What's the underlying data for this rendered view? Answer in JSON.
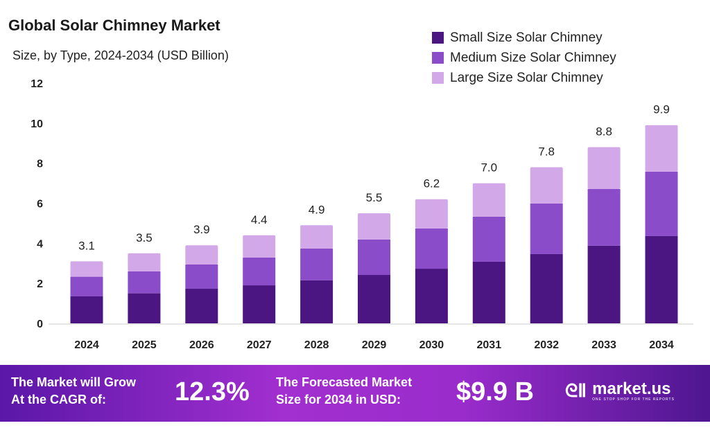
{
  "chart_data": {
    "type": "bar",
    "stacked": true,
    "title": "Global Solar Chimney Market",
    "subtitle": "Size, by Type, 2024-2034 (USD Billion)",
    "xlabel": "",
    "ylabel": "",
    "ylim": [
      0,
      12
    ],
    "yticks": [
      0,
      2,
      4,
      6,
      8,
      10,
      12
    ],
    "grid": false,
    "legend_position": "top-right",
    "categories": [
      "2024",
      "2025",
      "2026",
      "2027",
      "2028",
      "2029",
      "2030",
      "2031",
      "2032",
      "2033",
      "2034"
    ],
    "series": [
      {
        "name": "Small Size Solar Chimney",
        "color": "#4b1682",
        "values": [
          1.35,
          1.5,
          1.73,
          1.9,
          2.15,
          2.42,
          2.73,
          3.08,
          3.46,
          3.88,
          4.36
        ]
      },
      {
        "name": "Medium Size Solar Chimney",
        "color": "#8a4cc9",
        "values": [
          0.98,
          1.1,
          1.21,
          1.39,
          1.59,
          1.77,
          2.01,
          2.25,
          2.53,
          2.83,
          3.22
        ]
      },
      {
        "name": "Large Size Solar Chimney",
        "color": "#d3a8e8",
        "values": [
          0.77,
          0.9,
          0.96,
          1.11,
          1.16,
          1.31,
          1.46,
          1.67,
          1.81,
          2.09,
          2.32
        ]
      }
    ],
    "totals": [
      "3.1",
      "3.5",
      "3.9",
      "4.4",
      "4.9",
      "5.5",
      "6.2",
      "7.0",
      "7.8",
      "8.8",
      "9.9"
    ]
  },
  "footer": {
    "cagr_text_1": "The Market will Grow",
    "cagr_text_2": "At the CAGR of:",
    "cagr_value": "12.3%",
    "forecast_text_1": "The Forecasted Market",
    "forecast_text_2": "Size for 2034 in USD:",
    "forecast_value": "$9.9 B",
    "logo_name": "market.us",
    "logo_tagline": "ONE STOP SHOP FOR THE REPORTS"
  }
}
